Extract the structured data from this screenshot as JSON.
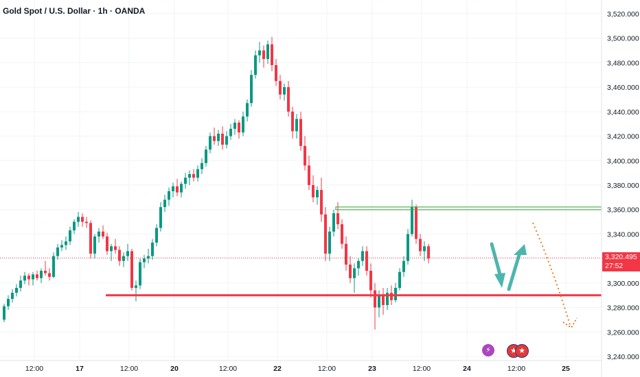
{
  "title": "Gold Spot / U.S. Dollar · 1h · OANDA",
  "last_price": "3,320.495",
  "countdown": "27:52",
  "colors": {
    "up": "#089981",
    "down": "#f23645",
    "support": "#f23645",
    "resistance": "#4caf50",
    "projection_up": "#4db6ac",
    "projection_down": "#e67e22",
    "grid": "#f0f3fa",
    "axis_text": "#131722"
  },
  "chart_data": {
    "type": "candlestick",
    "title": "Gold Spot / U.S. Dollar · 1h · OANDA",
    "ylim": [
      3235,
      3525
    ],
    "y_ticks": [
      "3,520.000",
      "3,500.000",
      "3,480.000",
      "3,460.000",
      "3,440.000",
      "3,420.000",
      "3,400.000",
      "3,380.000",
      "3,360.000",
      "3,340.000",
      "3,320.000",
      "3,300.000",
      "3,280.000",
      "3,260.000",
      "3,240.000"
    ],
    "y_tick_values": [
      3520,
      3500,
      3480,
      3460,
      3440,
      3420,
      3400,
      3380,
      3360,
      3340,
      3320,
      3300,
      3280,
      3260,
      3240
    ],
    "x_ticks": [
      {
        "label": "12:00",
        "bold": false,
        "index": 7
      },
      {
        "label": "17",
        "bold": true,
        "index": 18
      },
      {
        "label": "12:00",
        "bold": false,
        "index": 30
      },
      {
        "label": "20",
        "bold": true,
        "index": 41
      },
      {
        "label": "12:00",
        "bold": false,
        "index": 54
      },
      {
        "label": "22",
        "bold": true,
        "index": 66
      },
      {
        "label": "12:00",
        "bold": false,
        "index": 78
      },
      {
        "label": "23",
        "bold": true,
        "index": 89
      },
      {
        "label": "12:00",
        "bold": false,
        "index": 101
      },
      {
        "label": "24",
        "bold": true,
        "index": 112
      },
      {
        "label": "12:00",
        "bold": false,
        "index": 124
      },
      {
        "label": "25",
        "bold": true,
        "index": 136
      }
    ],
    "candles": [
      [
        3270,
        3283,
        3268,
        3281
      ],
      [
        3281,
        3290,
        3278,
        3287
      ],
      [
        3287,
        3295,
        3284,
        3292
      ],
      [
        3292,
        3299,
        3289,
        3296
      ],
      [
        3296,
        3306,
        3293,
        3302
      ],
      [
        3302,
        3309,
        3299,
        3306
      ],
      [
        3306,
        3308,
        3298,
        3303
      ],
      [
        3303,
        3309,
        3298,
        3307
      ],
      [
        3307,
        3310,
        3302,
        3304
      ],
      [
        3304,
        3312,
        3300,
        3310
      ],
      [
        3310,
        3318,
        3306,
        3308
      ],
      [
        3308,
        3312,
        3302,
        3305
      ],
      [
        3305,
        3325,
        3304,
        3322
      ],
      [
        3322,
        3332,
        3319,
        3329
      ],
      [
        3329,
        3335,
        3326,
        3331
      ],
      [
        3331,
        3338,
        3327,
        3334
      ],
      [
        3334,
        3346,
        3331,
        3343
      ],
      [
        3343,
        3352,
        3340,
        3350
      ],
      [
        3350,
        3358,
        3346,
        3354
      ],
      [
        3354,
        3357,
        3346,
        3350
      ],
      [
        3350,
        3354,
        3345,
        3349
      ],
      [
        3349,
        3351,
        3320,
        3324
      ],
      [
        3324,
        3340,
        3320,
        3338
      ],
      [
        3338,
        3345,
        3333,
        3342
      ],
      [
        3342,
        3347,
        3336,
        3338
      ],
      [
        3338,
        3341,
        3323,
        3326
      ],
      [
        3326,
        3332,
        3318,
        3330
      ],
      [
        3330,
        3336,
        3324,
        3327
      ],
      [
        3327,
        3330,
        3314,
        3318
      ],
      [
        3318,
        3325,
        3313,
        3322
      ],
      [
        3322,
        3332,
        3318,
        3326
      ],
      [
        3326,
        3328,
        3294,
        3296
      ],
      [
        3296,
        3302,
        3285,
        3298
      ],
      [
        3298,
        3320,
        3295,
        3317
      ],
      [
        3317,
        3323,
        3312,
        3320
      ],
      [
        3320,
        3328,
        3316,
        3322
      ],
      [
        3322,
        3336,
        3319,
        3333
      ],
      [
        3333,
        3348,
        3330,
        3345
      ],
      [
        3345,
        3366,
        3342,
        3362
      ],
      [
        3362,
        3372,
        3358,
        3368
      ],
      [
        3368,
        3378,
        3363,
        3375
      ],
      [
        3375,
        3382,
        3370,
        3379
      ],
      [
        3379,
        3385,
        3371,
        3374
      ],
      [
        3374,
        3383,
        3370,
        3381
      ],
      [
        3381,
        3390,
        3377,
        3386
      ],
      [
        3386,
        3392,
        3380,
        3389
      ],
      [
        3389,
        3393,
        3383,
        3386
      ],
      [
        3386,
        3396,
        3383,
        3393
      ],
      [
        3393,
        3402,
        3389,
        3398
      ],
      [
        3398,
        3412,
        3395,
        3409
      ],
      [
        3409,
        3423,
        3406,
        3420
      ],
      [
        3420,
        3427,
        3413,
        3416
      ],
      [
        3416,
        3425,
        3412,
        3422
      ],
      [
        3422,
        3428,
        3409,
        3413
      ],
      [
        3413,
        3424,
        3410,
        3420
      ],
      [
        3420,
        3430,
        3417,
        3426
      ],
      [
        3426,
        3434,
        3421,
        3431
      ],
      [
        3431,
        3433,
        3418,
        3423
      ],
      [
        3423,
        3440,
        3420,
        3436
      ],
      [
        3436,
        3450,
        3432,
        3447
      ],
      [
        3447,
        3474,
        3444,
        3470
      ],
      [
        3470,
        3490,
        3467,
        3486
      ],
      [
        3486,
        3497,
        3480,
        3490
      ],
      [
        3490,
        3494,
        3476,
        3483
      ],
      [
        3483,
        3498,
        3479,
        3495
      ],
      [
        3495,
        3501,
        3473,
        3478
      ],
      [
        3478,
        3483,
        3461,
        3465
      ],
      [
        3465,
        3470,
        3450,
        3454
      ],
      [
        3454,
        3463,
        3449,
        3460
      ],
      [
        3460,
        3465,
        3436,
        3440
      ],
      [
        3440,
        3444,
        3418,
        3424
      ],
      [
        3424,
        3438,
        3418,
        3434
      ],
      [
        3434,
        3440,
        3408,
        3412
      ],
      [
        3412,
        3420,
        3392,
        3396
      ],
      [
        3396,
        3404,
        3376,
        3380
      ],
      [
        3380,
        3388,
        3366,
        3370
      ],
      [
        3370,
        3379,
        3364,
        3376
      ],
      [
        3376,
        3386,
        3350,
        3356
      ],
      [
        3356,
        3362,
        3318,
        3324
      ],
      [
        3324,
        3346,
        3318,
        3342
      ],
      [
        3342,
        3360,
        3338,
        3357
      ],
      [
        3357,
        3366,
        3344,
        3348
      ],
      [
        3348,
        3352,
        3328,
        3332
      ],
      [
        3332,
        3338,
        3310,
        3315
      ],
      [
        3315,
        3322,
        3300,
        3304
      ],
      [
        3304,
        3316,
        3292,
        3312
      ],
      [
        3312,
        3320,
        3306,
        3318
      ],
      [
        3318,
        3330,
        3314,
        3326
      ],
      [
        3326,
        3330,
        3306,
        3310
      ],
      [
        3310,
        3316,
        3288,
        3294
      ],
      [
        3294,
        3300,
        3262,
        3280
      ],
      [
        3280,
        3294,
        3272,
        3290
      ],
      [
        3290,
        3296,
        3274,
        3282
      ],
      [
        3282,
        3296,
        3278,
        3292
      ],
      [
        3292,
        3298,
        3282,
        3286
      ],
      [
        3286,
        3300,
        3284,
        3296
      ],
      [
        3296,
        3312,
        3294,
        3309
      ],
      [
        3309,
        3322,
        3305,
        3318
      ],
      [
        3318,
        3344,
        3315,
        3340
      ],
      [
        3340,
        3368,
        3338,
        3362
      ],
      [
        3362,
        3364,
        3332,
        3336
      ],
      [
        3336,
        3340,
        3322,
        3326
      ],
      [
        3326,
        3334,
        3318,
        3330
      ],
      [
        3330,
        3332,
        3316,
        3320
      ]
    ],
    "horizontal_levels": [
      {
        "role": "support",
        "value": 3290
      },
      {
        "role": "resistance",
        "value": 3361
      }
    ],
    "last_value": 3320.495
  }
}
